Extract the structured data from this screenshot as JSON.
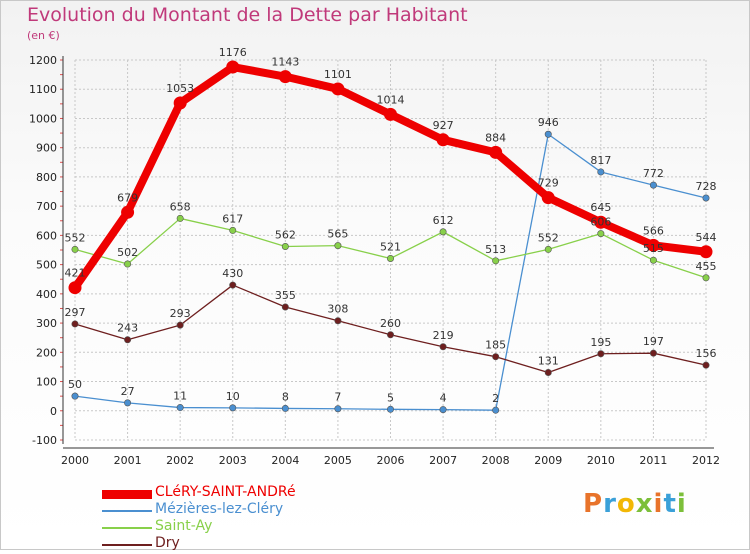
{
  "title": "Evolution du Montant de la Dette par Habitant",
  "subtitle": "(en €)",
  "logo_text": "Proxiti",
  "logo_colors": [
    "#e8732a",
    "#3aa0d8",
    "#f2b705",
    "#7cbf3a",
    "#e8732a",
    "#3aa0d8",
    "#7cbf3a"
  ],
  "chart_data": {
    "type": "line",
    "x": [
      "2000",
      "2001",
      "2002",
      "2003",
      "2004",
      "2005",
      "2006",
      "2007",
      "2008",
      "2009",
      "2010",
      "2011",
      "2012"
    ],
    "ylim": [
      -100,
      1200
    ],
    "yticks": [
      -100,
      0,
      100,
      200,
      300,
      400,
      500,
      600,
      700,
      800,
      900,
      1000,
      1100,
      1200
    ],
    "series": [
      {
        "name": "Mézières-lez-Cléry",
        "color": "#4a8fd0",
        "values": [
          50,
          27,
          11,
          10,
          8,
          7,
          5,
          4,
          2,
          946,
          817,
          772,
          728
        ]
      },
      {
        "name": "Saint-Ay",
        "color": "#88d04a",
        "values": [
          552,
          502,
          658,
          617,
          562,
          565,
          521,
          612,
          513,
          552,
          606,
          515,
          455
        ]
      },
      {
        "name": "Dry",
        "color": "#6e1f1f",
        "values": [
          297,
          243,
          293,
          430,
          355,
          308,
          260,
          219,
          185,
          131,
          195,
          197,
          156
        ]
      },
      {
        "name": "CLéRY-SAINT-ANDRé",
        "color": "#ee0000",
        "values": [
          421,
          679,
          1053,
          1176,
          1143,
          1101,
          1014,
          927,
          884,
          729,
          645,
          566,
          544
        ]
      }
    ]
  },
  "legend": [
    {
      "name": "CLéRY-SAINT-ANDRé",
      "color": "#ee0000"
    },
    {
      "name": "Mézières-lez-Cléry",
      "color": "#4a8fd0"
    },
    {
      "name": "Saint-Ay",
      "color": "#88d04a"
    },
    {
      "name": "Dry",
      "color": "#6e1f1f"
    }
  ]
}
